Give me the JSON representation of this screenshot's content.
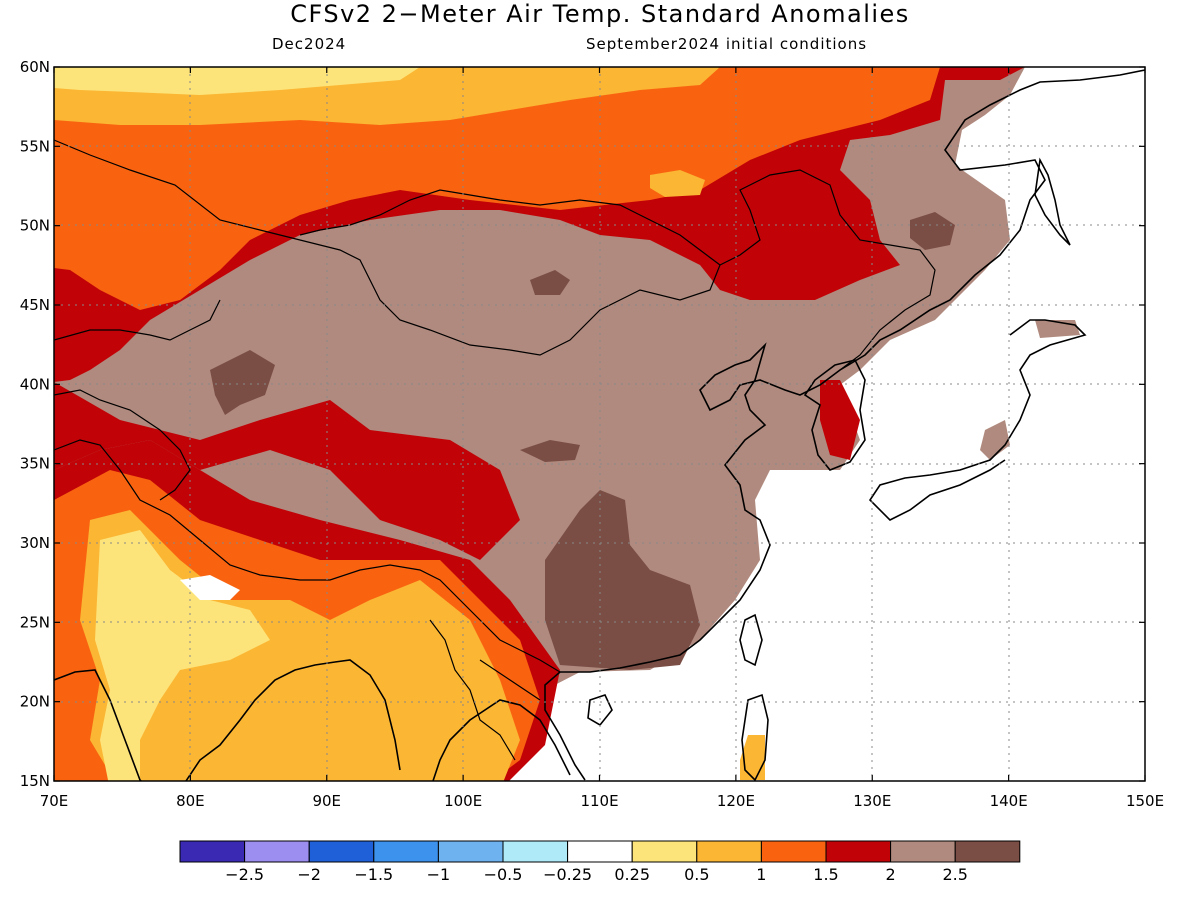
{
  "title": "CFSv2 2−Meter Air Temp. Standard Anomalies",
  "subtitle_left": "Dec2024",
  "subtitle_right": "September2024 initial conditions",
  "map": {
    "lon_range": [
      70,
      150
    ],
    "lat_range": [
      15,
      60
    ],
    "x_ticks": [
      "70E",
      "80E",
      "90E",
      "100E",
      "110E",
      "120E",
      "130E",
      "140E",
      "150E"
    ],
    "y_ticks": [
      "60N",
      "55N",
      "50N",
      "45N",
      "40N",
      "35N",
      "30N",
      "25N",
      "20N",
      "15N"
    ],
    "gridlines": "dotted",
    "ocean_color": "#ffffff",
    "coastline_color": "#000000"
  },
  "colorbar": {
    "colors": [
      "#3a2ab3",
      "#9b8ef0",
      "#1f60d8",
      "#3d92ee",
      "#6fb2f0",
      "#aeeaf8",
      "#ffffff",
      "#fde47a",
      "#fbb634",
      "#f96310",
      "#c10307",
      "#b08a7e",
      "#7a4e45"
    ],
    "labels": [
      "−2.5",
      "−2",
      "−1.5",
      "−1",
      "−0.5",
      "−0.25",
      "0.25",
      "0.5",
      "1",
      "1.5",
      "2",
      "2.5"
    ]
  }
}
